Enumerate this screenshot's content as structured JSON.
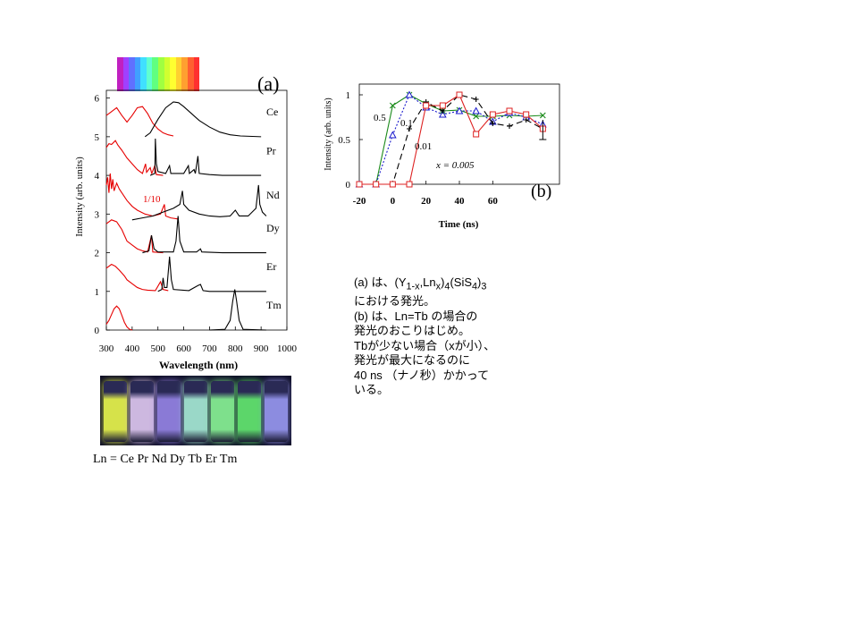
{
  "panel_a": {
    "label": "(a)",
    "ratio_note": "1/10",
    "chart_data": {
      "type": "line",
      "xlabel": "Wavelength (nm)",
      "ylabel": "Intensity (arb. units)",
      "xlim": [
        300,
        1000
      ],
      "ylim": [
        0,
        6.2
      ],
      "x_ticks": [
        "300",
        "400",
        "500",
        "600",
        "700",
        "800",
        "900",
        "1000"
      ],
      "y_ticks": [
        "0",
        "1",
        "2",
        "3",
        "4",
        "5",
        "6"
      ],
      "series": [
        {
          "name": "Ce",
          "offset": 5,
          "excitation": [
            [
              300,
              0.55
            ],
            [
              320,
              0.65
            ],
            [
              340,
              0.75
            ],
            [
              360,
              0.55
            ],
            [
              380,
              0.38
            ],
            [
              400,
              0.55
            ],
            [
              420,
              0.75
            ],
            [
              440,
              0.78
            ],
            [
              460,
              0.6
            ],
            [
              480,
              0.35
            ],
            [
              500,
              0.2
            ],
            [
              520,
              0.1
            ],
            [
              540,
              0.05
            ],
            [
              560,
              0.02
            ]
          ],
          "emission": [
            [
              450,
              0.0
            ],
            [
              470,
              0.1
            ],
            [
              500,
              0.45
            ],
            [
              530,
              0.75
            ],
            [
              560,
              0.9
            ],
            [
              580,
              0.88
            ],
            [
              600,
              0.78
            ],
            [
              630,
              0.6
            ],
            [
              660,
              0.42
            ],
            [
              700,
              0.25
            ],
            [
              740,
              0.12
            ],
            [
              780,
              0.05
            ],
            [
              820,
              0.02
            ],
            [
              900,
              0.0
            ]
          ]
        },
        {
          "name": "Pr",
          "offset": 4,
          "excitation": [
            [
              300,
              0.72
            ],
            [
              310,
              0.82
            ],
            [
              320,
              0.8
            ],
            [
              335,
              0.9
            ],
            [
              345,
              0.78
            ],
            [
              360,
              0.65
            ],
            [
              380,
              0.45
            ],
            [
              400,
              0.3
            ],
            [
              420,
              0.15
            ],
            [
              440,
              0.05
            ],
            [
              452,
              0.3
            ],
            [
              456,
              0.08
            ],
            [
              470,
              0.2
            ],
            [
              476,
              0.05
            ],
            [
              488,
              0.25
            ],
            [
              494,
              0.02
            ],
            [
              520,
              0.0
            ]
          ],
          "emission": [
            [
              470,
              0.0
            ],
            [
              488,
              0.05
            ],
            [
              490,
              0.95
            ],
            [
              494,
              0.3
            ],
            [
              500,
              0.1
            ],
            [
              530,
              0.05
            ],
            [
              545,
              0.25
            ],
            [
              550,
              0.05
            ],
            [
              600,
              0.05
            ],
            [
              618,
              0.25
            ],
            [
              622,
              0.05
            ],
            [
              640,
              0.15
            ],
            [
              645,
              0.05
            ],
            [
              655,
              0.5
            ],
            [
              660,
              0.05
            ],
            [
              700,
              0.02
            ],
            [
              750,
              0.0
            ],
            [
              900,
              0.0
            ]
          ]
        },
        {
          "name": "Nd",
          "offset": 2.85,
          "excitation": [
            [
              300,
              0.9
            ],
            [
              305,
              1.1
            ],
            [
              310,
              0.7
            ],
            [
              315,
              1.2
            ],
            [
              320,
              0.8
            ],
            [
              325,
              1.05
            ],
            [
              330,
              0.75
            ],
            [
              340,
              0.95
            ],
            [
              350,
              0.8
            ],
            [
              360,
              0.7
            ],
            [
              380,
              0.5
            ],
            [
              400,
              0.35
            ],
            [
              420,
              0.25
            ],
            [
              450,
              0.15
            ],
            [
              480,
              0.1
            ],
            [
              510,
              0.15
            ],
            [
              525,
              0.4
            ],
            [
              530,
              0.1
            ],
            [
              550,
              0.05
            ],
            [
              580,
              0.02
            ]
          ],
          "emission": [
            [
              400,
              0.0
            ],
            [
              440,
              0.05
            ],
            [
              480,
              0.1
            ],
            [
              520,
              0.2
            ],
            [
              540,
              0.25
            ],
            [
              560,
              0.3
            ],
            [
              585,
              0.4
            ],
            [
              595,
              0.75
            ],
            [
              600,
              0.4
            ],
            [
              620,
              0.25
            ],
            [
              660,
              0.15
            ],
            [
              700,
              0.1
            ],
            [
              740,
              0.08
            ],
            [
              780,
              0.1
            ],
            [
              800,
              0.25
            ],
            [
              815,
              0.1
            ],
            [
              850,
              0.1
            ],
            [
              880,
              0.3
            ],
            [
              890,
              0.9
            ],
            [
              895,
              0.4
            ],
            [
              905,
              0.2
            ],
            [
              920,
              0.1
            ]
          ]
        },
        {
          "name": "Dy",
          "offset": 2,
          "excitation": [
            [
              300,
              0.75
            ],
            [
              320,
              0.85
            ],
            [
              340,
              0.8
            ],
            [
              360,
              0.6
            ],
            [
              370,
              0.45
            ],
            [
              380,
              0.3
            ],
            [
              400,
              0.2
            ],
            [
              420,
              0.1
            ],
            [
              440,
              0.05
            ],
            [
              460,
              0.02
            ],
            [
              475,
              0.45
            ],
            [
              480,
              0.02
            ],
            [
              520,
              0.0
            ]
          ],
          "emission": [
            [
              440,
              0.0
            ],
            [
              465,
              0.05
            ],
            [
              475,
              0.45
            ],
            [
              485,
              0.1
            ],
            [
              500,
              0.02
            ],
            [
              560,
              0.02
            ],
            [
              570,
              0.3
            ],
            [
              578,
              0.95
            ],
            [
              585,
              0.3
            ],
            [
              600,
              0.02
            ],
            [
              650,
              0.02
            ],
            [
              665,
              0.1
            ],
            [
              670,
              0.02
            ],
            [
              750,
              0.0
            ],
            [
              920,
              0.0
            ]
          ]
        },
        {
          "name": "Er",
          "offset": 1,
          "excitation": [
            [
              300,
              0.6
            ],
            [
              320,
              0.7
            ],
            [
              335,
              0.65
            ],
            [
              350,
              0.55
            ],
            [
              370,
              0.4
            ],
            [
              380,
              0.3
            ],
            [
              400,
              0.2
            ],
            [
              420,
              0.1
            ],
            [
              440,
              0.05
            ],
            [
              460,
              0.03
            ],
            [
              490,
              0.02
            ],
            [
              510,
              0.25
            ],
            [
              520,
              0.05
            ],
            [
              540,
              0.02
            ]
          ],
          "emission": [
            [
              500,
              0.0
            ],
            [
              515,
              0.05
            ],
            [
              520,
              0.35
            ],
            [
              525,
              0.1
            ],
            [
              535,
              0.1
            ],
            [
              545,
              0.9
            ],
            [
              552,
              0.3
            ],
            [
              560,
              0.05
            ],
            [
              620,
              0.02
            ],
            [
              655,
              0.15
            ],
            [
              665,
              0.18
            ],
            [
              675,
              0.02
            ],
            [
              700,
              0.0
            ],
            [
              920,
              0.0
            ]
          ]
        },
        {
          "name": "Tm",
          "offset": 0,
          "excitation": [
            [
              300,
              0.15
            ],
            [
              310,
              0.25
            ],
            [
              320,
              0.4
            ],
            [
              330,
              0.55
            ],
            [
              340,
              0.62
            ],
            [
              350,
              0.55
            ],
            [
              360,
              0.38
            ],
            [
              370,
              0.2
            ],
            [
              380,
              0.08
            ],
            [
              390,
              0.02
            ],
            [
              400,
              0.0
            ]
          ],
          "emission": [
            [
              700,
              0.0
            ],
            [
              760,
              0.02
            ],
            [
              780,
              0.25
            ],
            [
              790,
              0.75
            ],
            [
              798,
              1.05
            ],
            [
              805,
              0.75
            ],
            [
              815,
              0.25
            ],
            [
              830,
              0.02
            ],
            [
              920,
              0.0
            ]
          ]
        }
      ]
    },
    "colors": {
      "excitation": "#e60000",
      "emission": "#000000"
    }
  },
  "panel_b": {
    "label": "(b)",
    "chart_data": {
      "type": "line",
      "xlabel": "Time (ns)",
      "ylabel": "Intensity (arb. units)",
      "xlim": [
        -20,
        100
      ],
      "ylim": [
        0,
        1.12
      ],
      "x_ticks": [
        "-20",
        "0",
        "20",
        "40",
        "60"
      ],
      "y_ticks": [
        "0",
        "0.5",
        "1"
      ],
      "x": [
        -20,
        -10,
        0,
        10,
        20,
        30,
        40,
        50,
        60,
        70,
        80,
        90
      ],
      "series": [
        {
          "label": "0.5",
          "color": "#1a8a1a",
          "marker": "x",
          "dash": "",
          "values": [
            0,
            0,
            0.88,
            1.0,
            0.9,
            0.82,
            0.83,
            0.76,
            0.76,
            0.77,
            0.76,
            0.77
          ]
        },
        {
          "label": "0.1",
          "color": "#1a1acc",
          "marker": "triangle",
          "dash": "2,2",
          "values": [
            0,
            0,
            0.55,
            1.0,
            0.86,
            0.78,
            0.82,
            0.82,
            0.7,
            0.8,
            0.75,
            0.67
          ]
        },
        {
          "label": "0.01",
          "color": "#000000",
          "marker": "plus",
          "dash": "7,4",
          "values": [
            0,
            0,
            0,
            0.62,
            0.92,
            0.82,
            1.0,
            0.95,
            0.68,
            0.65,
            0.72,
            0.62
          ]
        },
        {
          "label": "0.005",
          "color": "#dd2222",
          "marker": "square",
          "dash": "",
          "values": [
            0,
            0,
            0,
            0,
            0.88,
            0.88,
            1.0,
            0.56,
            0.78,
            0.82,
            0.78,
            0.62
          ]
        }
      ],
      "annotation_x": "x = 0.005"
    }
  },
  "caption": {
    "line1_prefix": "(a) は、(Y",
    "line1_sub1": "1-x",
    "line1_mid": ",Ln",
    "line1_sub2": "x",
    "line1_mid2": ")",
    "line1_sub3": "4",
    "line1_mid3": "(SiS",
    "line1_sub4": "4",
    "line1_mid4": ")",
    "line1_sub5": "3",
    "line2": "における発光。",
    "line3": "(b) は、Ln=Tb の場合の",
    "line4": "発光のおこりはじめ。",
    "line5": "Tbが少ない場合（xが小）、",
    "line6": "発光が最大になるのに",
    "line7": "40 ns （ナノ秒）かかって",
    "line8": "いる。"
  },
  "vials": {
    "ln_label": "Ln = Ce  Pr  Nd  Dy  Tb  Er  Tm",
    "colors": [
      "#d6e24a",
      "#cdb8e0",
      "#8a7ad6",
      "#9ad8c8",
      "#7ee08c",
      "#5cd66a",
      "#8c8ce0"
    ]
  },
  "spectrum_bar": {
    "colors": [
      "#c020c0",
      "#a040ff",
      "#6070ff",
      "#40a0ff",
      "#40e0ff",
      "#60ffd0",
      "#60ff80",
      "#a0ff40",
      "#d0ff30",
      "#ffff30",
      "#ffd030",
      "#ffa030",
      "#ff6030",
      "#ff3030"
    ]
  }
}
